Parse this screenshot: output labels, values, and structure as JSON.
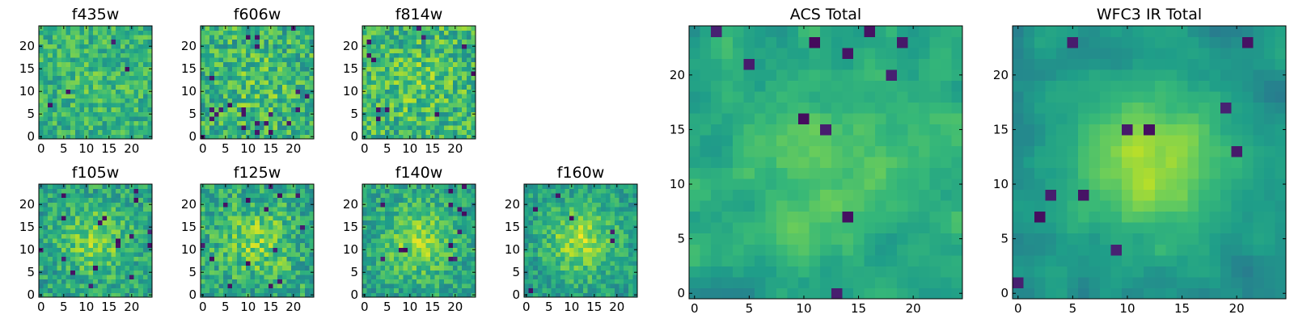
{
  "figure": {
    "colormap": "viridis",
    "colormap_stops": [
      "#440154",
      "#482878",
      "#3e4989",
      "#31688e",
      "#26828e",
      "#1f9e89",
      "#35b779",
      "#6ece58",
      "#b5de2b",
      "#fde725"
    ],
    "pixel_grid": [
      25,
      25
    ]
  },
  "chart_data": [
    {
      "type": "heatmap",
      "title": "f435w",
      "xlim": [
        0,
        24
      ],
      "ylim": [
        0,
        24
      ],
      "xticks": [
        0,
        5,
        10,
        15,
        20
      ],
      "yticks": [
        0,
        5,
        10,
        15,
        20
      ],
      "texture": "noise",
      "seed": 11,
      "center_strength": 0.05,
      "mean": 0.64,
      "noise": 0.16,
      "dark_fraction": 0.005
    },
    {
      "type": "heatmap",
      "title": "f606w",
      "xlim": [
        0,
        24
      ],
      "ylim": [
        0,
        24
      ],
      "xticks": [
        0,
        5,
        10,
        15,
        20
      ],
      "yticks": [
        0,
        5,
        10,
        15,
        20
      ],
      "texture": "noise",
      "seed": 23,
      "center_strength": 0.08,
      "mean": 0.64,
      "noise": 0.2,
      "dark_fraction": 0.03
    },
    {
      "type": "heatmap",
      "title": "f814w",
      "xlim": [
        0,
        24
      ],
      "ylim": [
        0,
        24
      ],
      "xticks": [
        0,
        5,
        10,
        15,
        20
      ],
      "yticks": [
        0,
        5,
        10,
        15,
        20
      ],
      "texture": "noise",
      "seed": 37,
      "center_strength": 0.08,
      "mean": 0.66,
      "noise": 0.2,
      "dark_fraction": 0.02
    },
    {
      "type": "heatmap",
      "title": "f105w",
      "xlim": [
        0,
        24
      ],
      "ylim": [
        0,
        24
      ],
      "xticks": [
        0,
        5,
        10,
        15,
        20
      ],
      "yticks": [
        0,
        5,
        10,
        15,
        20
      ],
      "texture": "noise",
      "seed": 41,
      "center_strength": 0.22,
      "mean": 0.58,
      "noise": 0.16,
      "dark_fraction": 0.02
    },
    {
      "type": "heatmap",
      "title": "f125w",
      "xlim": [
        0,
        24
      ],
      "ylim": [
        0,
        24
      ],
      "xticks": [
        0,
        5,
        10,
        15,
        20
      ],
      "yticks": [
        0,
        5,
        10,
        15,
        20
      ],
      "texture": "noise",
      "seed": 53,
      "center_strength": 0.2,
      "mean": 0.6,
      "noise": 0.18,
      "dark_fraction": 0.025
    },
    {
      "type": "heatmap",
      "title": "f140w",
      "xlim": [
        0,
        24
      ],
      "ylim": [
        0,
        24
      ],
      "xticks": [
        0,
        5,
        10,
        15,
        20
      ],
      "yticks": [
        0,
        5,
        10,
        15,
        20
      ],
      "texture": "noise",
      "seed": 67,
      "center_strength": 0.26,
      "mean": 0.58,
      "noise": 0.15,
      "dark_fraction": 0.02
    },
    {
      "type": "heatmap",
      "title": "f160w",
      "xlim": [
        0,
        24
      ],
      "ylim": [
        0,
        24
      ],
      "xticks": [
        0,
        5,
        10,
        15,
        20
      ],
      "yticks": [
        0,
        5,
        10,
        15,
        20
      ],
      "texture": "noise",
      "seed": 79,
      "center_strength": 0.3,
      "mean": 0.56,
      "noise": 0.14,
      "dark_fraction": 0.02
    },
    {
      "type": "heatmap",
      "title": "ACS Total",
      "xlim": [
        0,
        24
      ],
      "ylim": [
        0,
        24
      ],
      "xticks": [
        0,
        5,
        10,
        15,
        20
      ],
      "yticks": [
        0,
        5,
        10,
        15,
        20
      ],
      "texture": "blocky",
      "seed": 97,
      "center_strength": 0.12,
      "mean": 0.6,
      "noise": 0.12,
      "dark_fraction": 0.025
    },
    {
      "type": "heatmap",
      "title": "WFC3 IR Total",
      "xlim": [
        0,
        24
      ],
      "ylim": [
        0,
        24
      ],
      "xticks": [
        0,
        5,
        10,
        15,
        20
      ],
      "yticks": [
        0,
        5,
        10,
        15,
        20
      ],
      "texture": "blocky",
      "seed": 113,
      "center_strength": 0.35,
      "mean": 0.5,
      "noise": 0.1,
      "dark_fraction": 0.02
    }
  ]
}
